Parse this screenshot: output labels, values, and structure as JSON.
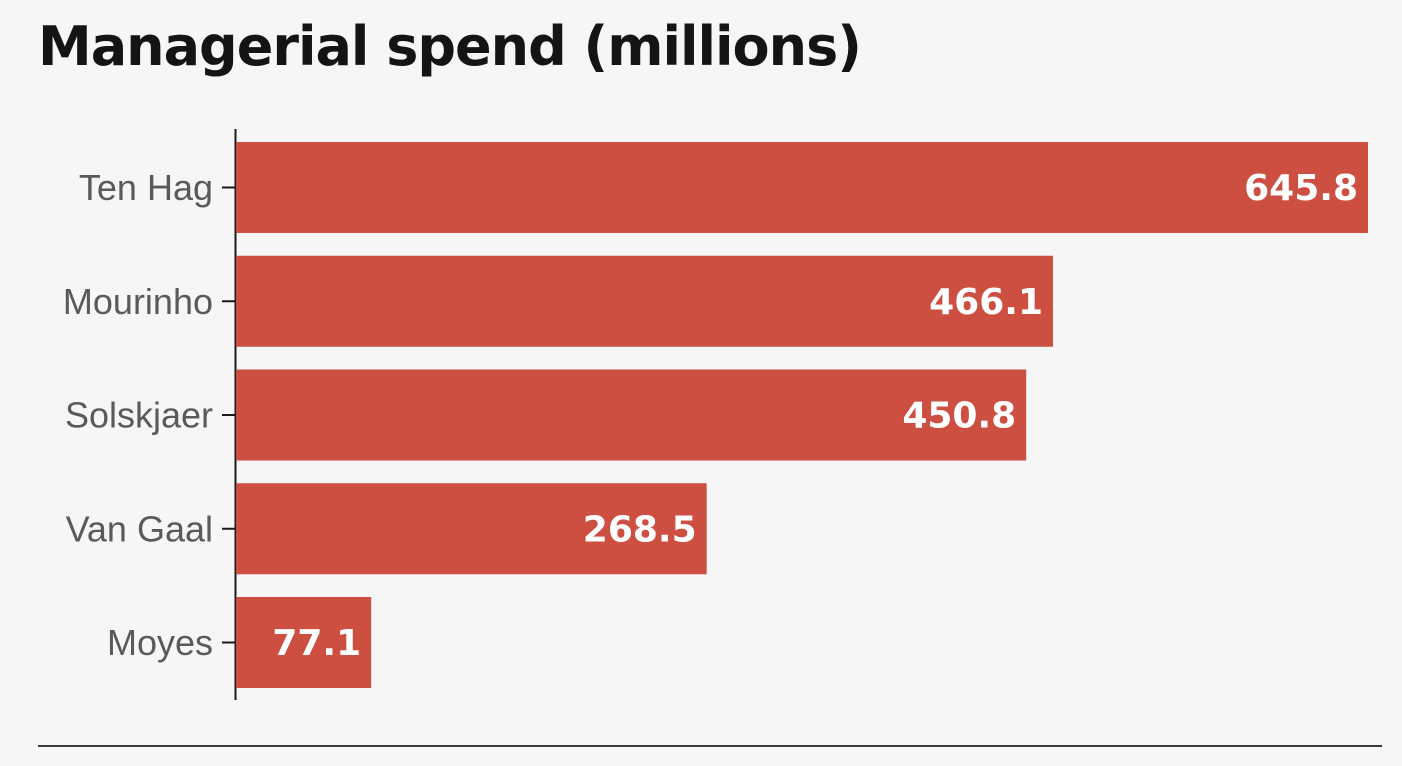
{
  "chart_data": {
    "type": "bar",
    "orientation": "horizontal",
    "title": "Managerial spend (millions)",
    "categories": [
      "Ten Hag",
      "Mourinho",
      "Solskjaer",
      "Van Gaal",
      "Moyes"
    ],
    "values": [
      645.8,
      466.1,
      450.8,
      268.5,
      77.1
    ],
    "value_labels": [
      "645.8",
      "466.1",
      "450.8",
      "268.5",
      "77.1"
    ],
    "xlabel": "",
    "ylabel": "",
    "xlim": [
      0,
      645.8
    ],
    "grid": false,
    "legend": "none",
    "bar_color": "#cc4f42",
    "label_color": "#ffffff"
  }
}
